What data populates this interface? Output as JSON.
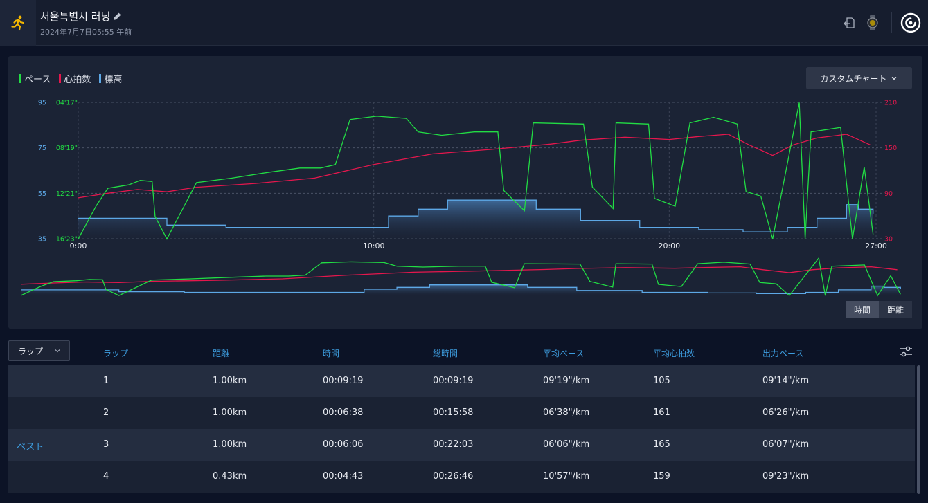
{
  "header": {
    "title": "서울특별시 러닝",
    "subtitle": "2024年7月7日05:55 午前",
    "sport_icon": "running-icon",
    "actions": [
      "export-icon",
      "watch-icon",
      "brand-logo-icon"
    ]
  },
  "chart": {
    "legend": [
      {
        "label": "ペース",
        "color": "#22dd44"
      },
      {
        "label": "心拍数",
        "color": "#e5174d"
      },
      {
        "label": "標高",
        "color": "#5da8e6"
      }
    ],
    "custom_button": "カスタムチャート",
    "toggle": {
      "time": "時間",
      "distance": "距離"
    }
  },
  "chart_data": {
    "type": "line",
    "xlabel": "時間",
    "x_ticks": [
      "0:00",
      "10:00",
      "20:00",
      "27:00"
    ],
    "x_range_minutes": [
      0,
      27
    ],
    "elevation_ticks": [
      "95",
      "75",
      "55",
      "35"
    ],
    "pace_ticks": [
      "04'17\"",
      "08'19\"",
      "12'21\"",
      "16'23\""
    ],
    "heart_rate_ticks": [
      "210",
      "150",
      "90",
      "30"
    ],
    "series": [
      {
        "name": "ペース",
        "color": "#22dd44",
        "points": [
          [
            0.0,
            16.4
          ],
          [
            0.6,
            13.5
          ],
          [
            1.0,
            11.9
          ],
          [
            1.7,
            11.6
          ],
          [
            2.1,
            11.2
          ],
          [
            2.5,
            11.3
          ],
          [
            2.6,
            14.4
          ],
          [
            3.0,
            16.4
          ],
          [
            4.0,
            11.4
          ],
          [
            5.2,
            11.0
          ],
          [
            6.4,
            10.5
          ],
          [
            7.5,
            10.1
          ],
          [
            8.2,
            10.1
          ],
          [
            8.7,
            9.8
          ],
          [
            9.2,
            5.8
          ],
          [
            10.1,
            5.5
          ],
          [
            11.1,
            5.7
          ],
          [
            11.5,
            6.9
          ],
          [
            12.3,
            7.2
          ],
          [
            13.4,
            6.9
          ],
          [
            14.2,
            6.9
          ],
          [
            14.4,
            12.1
          ],
          [
            15.1,
            13.9
          ],
          [
            15.4,
            6.1
          ],
          [
            17.1,
            6.2
          ],
          [
            17.4,
            11.8
          ],
          [
            18.1,
            13.7
          ],
          [
            18.2,
            6.1
          ],
          [
            19.3,
            6.2
          ],
          [
            19.5,
            12.8
          ],
          [
            20.2,
            13.5
          ],
          [
            20.7,
            6.1
          ],
          [
            21.5,
            5.6
          ],
          [
            22.3,
            6.2
          ],
          [
            22.6,
            12.2
          ],
          [
            23.1,
            12.6
          ],
          [
            23.5,
            16.4
          ],
          [
            24.4,
            4.3
          ],
          [
            24.6,
            16.4
          ],
          [
            24.8,
            6.9
          ],
          [
            25.8,
            6.5
          ],
          [
            26.2,
            16.4
          ],
          [
            26.6,
            10.0
          ],
          [
            26.9,
            16.0
          ]
        ]
      },
      {
        "name": "心拍数",
        "color": "#e5174d",
        "points": [
          [
            0.0,
            84
          ],
          [
            1.0,
            90
          ],
          [
            2.0,
            95
          ],
          [
            3.0,
            92
          ],
          [
            4.0,
            98
          ],
          [
            6.0,
            103
          ],
          [
            8.0,
            110
          ],
          [
            10.0,
            128
          ],
          [
            12.0,
            142
          ],
          [
            14.0,
            148
          ],
          [
            16.0,
            155
          ],
          [
            17.0,
            160
          ],
          [
            18.5,
            164
          ],
          [
            20.0,
            161
          ],
          [
            21.0,
            165
          ],
          [
            22.0,
            168
          ],
          [
            22.7,
            154
          ],
          [
            23.5,
            140
          ],
          [
            24.2,
            154
          ],
          [
            25.0,
            163
          ],
          [
            26.0,
            168
          ],
          [
            26.8,
            154
          ]
        ]
      },
      {
        "name": "標高",
        "color": "#5da8e6",
        "points": [
          [
            0.0,
            44
          ],
          [
            1.5,
            44
          ],
          [
            3.0,
            41
          ],
          [
            5.0,
            40
          ],
          [
            7.0,
            40
          ],
          [
            9.0,
            40
          ],
          [
            10.5,
            45
          ],
          [
            11.5,
            48
          ],
          [
            12.5,
            52
          ],
          [
            14.0,
            52
          ],
          [
            15.5,
            48
          ],
          [
            17.0,
            43
          ],
          [
            19.0,
            40
          ],
          [
            21.0,
            39
          ],
          [
            22.5,
            38
          ],
          [
            24.0,
            40
          ],
          [
            25.0,
            44
          ],
          [
            26.0,
            50
          ],
          [
            26.4,
            48
          ],
          [
            26.9,
            46
          ]
        ]
      }
    ]
  },
  "laps": {
    "selector": "ラップ",
    "columns": [
      "ラップ",
      "距離",
      "時間",
      "総時間",
      "平均ペース",
      "平均心拍数",
      "出力ペース"
    ],
    "rows": [
      {
        "tag": "",
        "lap": "1",
        "distance": "1.00km",
        "time": "00:09:19",
        "total": "00:09:19",
        "avg_pace": "09'19\"/km",
        "avg_hr": "105",
        "out_pace": "09'14\"/km"
      },
      {
        "tag": "",
        "lap": "2",
        "distance": "1.00km",
        "time": "00:06:38",
        "total": "00:15:58",
        "avg_pace": "06'38\"/km",
        "avg_hr": "161",
        "out_pace": "06'26\"/km"
      },
      {
        "tag": "ベスト",
        "lap": "3",
        "distance": "1.00km",
        "time": "00:06:06",
        "total": "00:22:03",
        "avg_pace": "06'06\"/km",
        "avg_hr": "165",
        "out_pace": "06'07\"/km"
      },
      {
        "tag": "",
        "lap": "4",
        "distance": "0.43km",
        "time": "00:04:43",
        "total": "00:26:46",
        "avg_pace": "10'57\"/km",
        "avg_hr": "159",
        "out_pace": "09'23\"/km"
      }
    ]
  }
}
